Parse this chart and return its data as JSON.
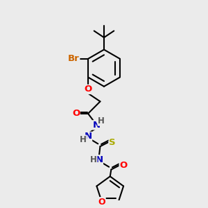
{
  "bg_color": "#ebebeb",
  "line_color": "#000000",
  "bond_width": 1.5,
  "atom_colors": {
    "Br": "#cc6600",
    "O": "#ff0000",
    "N": "#0000bb",
    "S": "#aaaa00",
    "C": "#000000",
    "H": "#555555"
  },
  "font_size_atom": 9.5,
  "ring_r": 0.38,
  "inner_ring_r": 0.27,
  "fur_r": 0.32,
  "inner_fur_r": 0.22
}
